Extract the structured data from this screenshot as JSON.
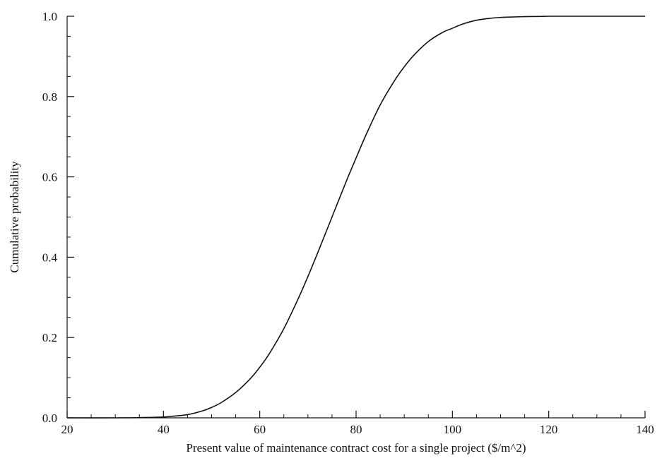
{
  "chart_data": {
    "type": "line",
    "title": "",
    "xlabel": "Present value of maintenance contract cost for a single project ($/m^2)",
    "ylabel": "Cumulative probability",
    "xlim": [
      20,
      140
    ],
    "ylim": [
      0.0,
      1.0
    ],
    "xticks": [
      20,
      40,
      60,
      80,
      100,
      120,
      140
    ],
    "xtick_labels": [
      "20",
      "40",
      "60",
      "80",
      "100",
      "120",
      "140"
    ],
    "yticks": [
      0.0,
      0.2,
      0.4,
      0.6,
      0.8,
      1.0
    ],
    "ytick_labels": [
      "0.0",
      "0.2",
      "0.4",
      "0.6",
      "0.8",
      "1.0"
    ],
    "x_minor_step": 5,
    "y_minor_step": 0.05,
    "grid": false,
    "legend": "none",
    "series": [
      {
        "color": "#111111",
        "x": [
          20,
          30,
          35,
          40,
          42,
          45,
          48,
          50,
          52,
          55,
          58,
          60,
          62,
          65,
          68,
          70,
          72,
          75,
          78,
          80,
          82,
          85,
          88,
          90,
          92,
          95,
          98,
          100,
          102,
          105,
          108,
          110,
          112,
          115,
          118,
          120,
          125,
          130,
          140
        ],
        "y": [
          0.0,
          0.0,
          0.0005,
          0.002,
          0.004,
          0.008,
          0.017,
          0.026,
          0.038,
          0.063,
          0.097,
          0.126,
          0.16,
          0.222,
          0.297,
          0.352,
          0.41,
          0.5,
          0.59,
          0.647,
          0.703,
          0.779,
          0.84,
          0.874,
          0.903,
          0.937,
          0.96,
          0.97,
          0.98,
          0.99,
          0.995,
          0.997,
          0.998,
          0.999,
          0.9995,
          1.0,
          1.0,
          1.0,
          1.0
        ]
      }
    ]
  }
}
